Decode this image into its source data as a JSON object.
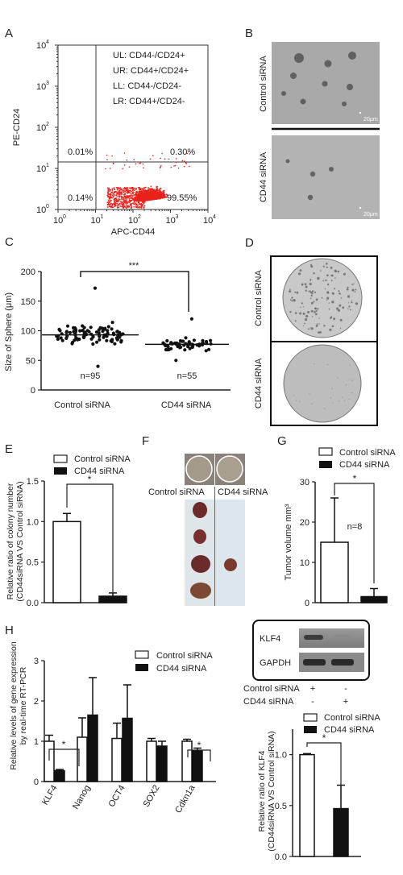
{
  "panels": {
    "A": {
      "letter": "A",
      "ylabel": "PE-CD24",
      "xlabel": "APC-CD44",
      "ticks_x": [
        "10",
        "10",
        "10",
        "10",
        "10"
      ],
      "ticks_x_exp": [
        "0",
        "1",
        "2",
        "3",
        "4"
      ],
      "ticks_y": [
        "10",
        "10",
        "10",
        "10",
        "10"
      ],
      "ticks_y_exp": [
        "0",
        "1",
        "2",
        "3",
        "4"
      ],
      "legend": [
        "UL: CD44-/CD24+",
        "UR: CD44+/CD24+",
        "LL: CD44-/CD24-",
        "LR: CD44+/CD24-"
      ],
      "quadrants": {
        "UL": "0.01%",
        "UR": "0.30%",
        "LL": "0.14%",
        "LR": "99.55%"
      },
      "dot_color": "#e8231c"
    },
    "B": {
      "letter": "B",
      "rows": [
        "Control siRNA",
        "CD44 siRNA"
      ],
      "scale_bar": "20μm"
    },
    "C": {
      "letter": "C",
      "ylabel": "Size of Sphere (μm)",
      "yticks": [
        "0",
        "50",
        "100",
        "150",
        "200"
      ],
      "groups": [
        "Control siRNA",
        "CD44 siRNA"
      ],
      "n_labels": [
        "n=95",
        "n=55"
      ],
      "significance": "***"
    },
    "D": {
      "letter": "D",
      "rows": [
        "Control siRNA",
        "CD44 siRNA"
      ]
    },
    "E": {
      "letter": "E",
      "ylabel_line1": "Relative ratio of colony number",
      "ylabel_line2": "(CD44siRNA VS Control siRNA)",
      "yticks": [
        "0.0",
        "0.5",
        "1.0",
        "1.5"
      ],
      "legend": [
        "Control siRNA",
        "CD44 siRNA"
      ],
      "significance": "*"
    },
    "F": {
      "letter": "F",
      "columns": [
        "Control siRNA",
        "CD44 siRNA"
      ]
    },
    "G": {
      "letter": "G",
      "ylabel": "Tumor volume mm³",
      "yticks": [
        "0",
        "10",
        "20",
        "30"
      ],
      "legend": [
        "Control siRNA",
        "CD44 siRNA"
      ],
      "n_label": "n=8",
      "significance": "*"
    },
    "H": {
      "letter": "H",
      "ylabel_line1": "Relative levels of gene expression",
      "ylabel_line2": "by real-time RT-PCR",
      "yticks": [
        "0",
        "1",
        "2",
        "3"
      ],
      "legend": [
        "Control siRNA",
        "CD44 siRNA"
      ],
      "significance": [
        "*",
        "*"
      ]
    },
    "I": {
      "letter": "I",
      "blot_labels": [
        "KLF4",
        "GAPDH"
      ],
      "treat_rows": [
        {
          "label": "Control siRNA",
          "marks": [
            "+",
            "-"
          ]
        },
        {
          "label": "CD44 siRNA",
          "marks": [
            "-",
            "+"
          ]
        }
      ],
      "ylabel_line1": "Relative ratio of KLF4",
      "ylabel_line2": "(CD44siRNA VS Control siRNA)",
      "yticks": [
        "0.0",
        "0.5",
        "1.0"
      ],
      "legend": [
        "Control siRNA",
        "CD44 siRNA"
      ],
      "significance": "*"
    }
  },
  "chart_data": [
    {
      "panel": "C",
      "type": "scatter",
      "categories": [
        "Control siRNA",
        "CD44 siRNA"
      ],
      "series": [
        {
          "name": "Control siRNA",
          "mean": 93,
          "n": 95,
          "min": 40,
          "max": 172
        },
        {
          "name": "CD44 siRNA",
          "mean": 77,
          "n": 55,
          "min": 50,
          "max": 120
        }
      ],
      "ylim": [
        0,
        200
      ]
    },
    {
      "panel": "E",
      "type": "bar",
      "categories": [
        "Control siRNA",
        "CD44 siRNA"
      ],
      "values": [
        1.0,
        0.08
      ],
      "errors": [
        0.1,
        0.04
      ],
      "ylim": [
        0,
        1.5
      ]
    },
    {
      "panel": "G",
      "type": "bar",
      "categories": [
        "Control siRNA",
        "CD44 siRNA"
      ],
      "values": [
        15,
        1.5
      ],
      "errors": [
        11,
        2
      ],
      "ylim": [
        0,
        30
      ]
    },
    {
      "panel": "H",
      "type": "bar",
      "categories": [
        "KLF4",
        "Nanog",
        "OCT4",
        "SOX2",
        "Cdkn1a"
      ],
      "series": [
        {
          "name": "Control siRNA",
          "values": [
            1.0,
            1.1,
            1.07,
            1.0,
            1.0
          ],
          "errors": [
            0.15,
            0.48,
            0.38,
            0.07,
            0.05
          ]
        },
        {
          "name": "CD44 siRNA",
          "values": [
            0.27,
            1.65,
            1.57,
            0.88,
            0.77
          ],
          "errors": [
            0.03,
            0.93,
            0.83,
            0.12,
            0.06
          ]
        }
      ],
      "ylim": [
        0,
        3
      ]
    },
    {
      "panel": "I",
      "type": "bar",
      "categories": [
        "Control siRNA",
        "CD44 siRNA"
      ],
      "values": [
        1.0,
        0.47
      ],
      "errors": [
        0.01,
        0.23
      ],
      "ylim": [
        0,
        1.25
      ]
    }
  ]
}
